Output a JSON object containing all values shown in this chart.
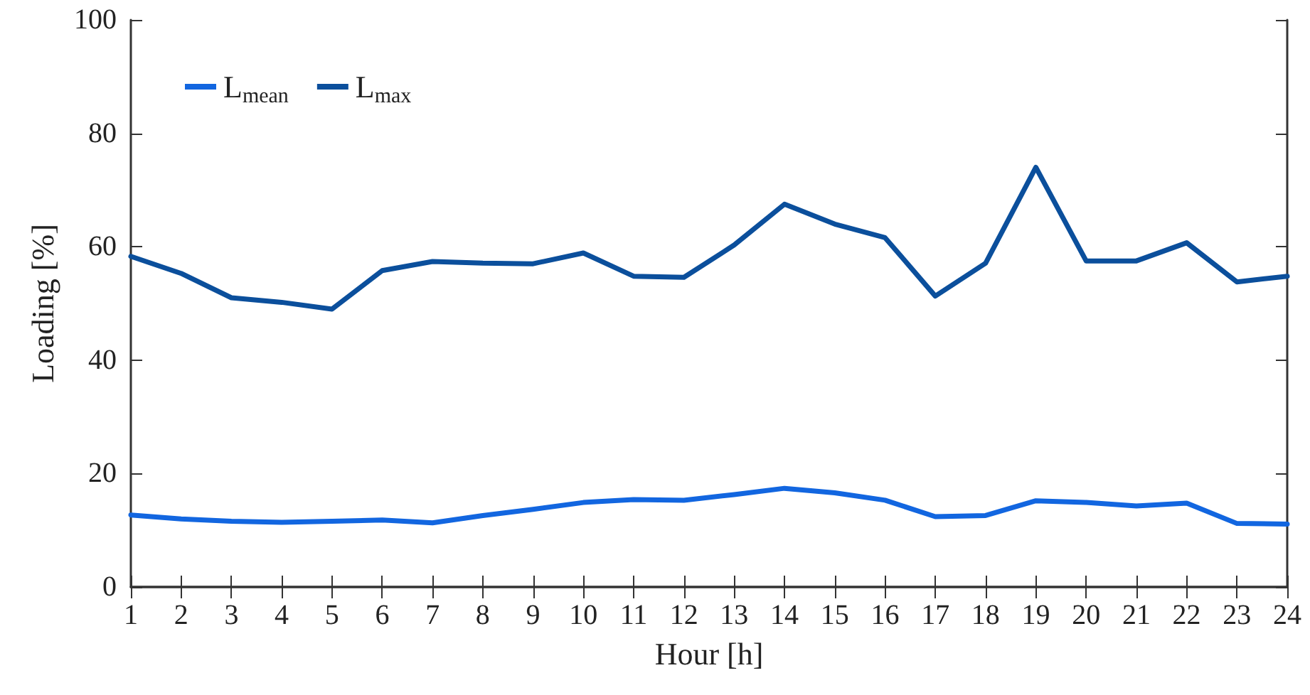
{
  "chart_data": {
    "type": "line",
    "xlabel": "Hour [h]",
    "ylabel": "Loading [%]",
    "x": [
      1,
      2,
      3,
      4,
      5,
      6,
      7,
      8,
      9,
      10,
      11,
      12,
      13,
      14,
      15,
      16,
      17,
      18,
      19,
      20,
      21,
      22,
      23,
      24
    ],
    "series": [
      {
        "name": "L$_{mean}$",
        "color": "#1266e0",
        "values": [
          12.7,
          12,
          11.6,
          11.4,
          11.6,
          11.8,
          11.3,
          12.6,
          13.7,
          14.9,
          15.4,
          15.3,
          16.3,
          17.4,
          16.6,
          15.3,
          12.4,
          12.6,
          15.2,
          14.9,
          14.3,
          14.8,
          11.2,
          11.1
        ]
      },
      {
        "name": "L$_{max}$",
        "color": "#0b4f9c",
        "values": [
          58.3,
          55.3,
          51,
          50.2,
          49,
          55.8,
          57.4,
          57.1,
          57,
          58.9,
          54.8,
          54.6,
          60.3,
          67.5,
          64,
          61.6,
          51.3,
          57.1,
          74,
          57.5,
          57.5,
          60.7,
          53.8,
          54.8
        ]
      }
    ],
    "xlim": [
      1,
      24
    ],
    "xticks": [
      1,
      2,
      3,
      4,
      5,
      6,
      7,
      8,
      9,
      10,
      11,
      12,
      13,
      14,
      15,
      16,
      17,
      18,
      19,
      20,
      21,
      22,
      23,
      24
    ],
    "ylim": [
      0,
      100
    ],
    "yticks": [
      0,
      20,
      40,
      60,
      80,
      100
    ],
    "grid": false,
    "legend": "top left",
    "marker": "none",
    "line_style": "solid"
  }
}
